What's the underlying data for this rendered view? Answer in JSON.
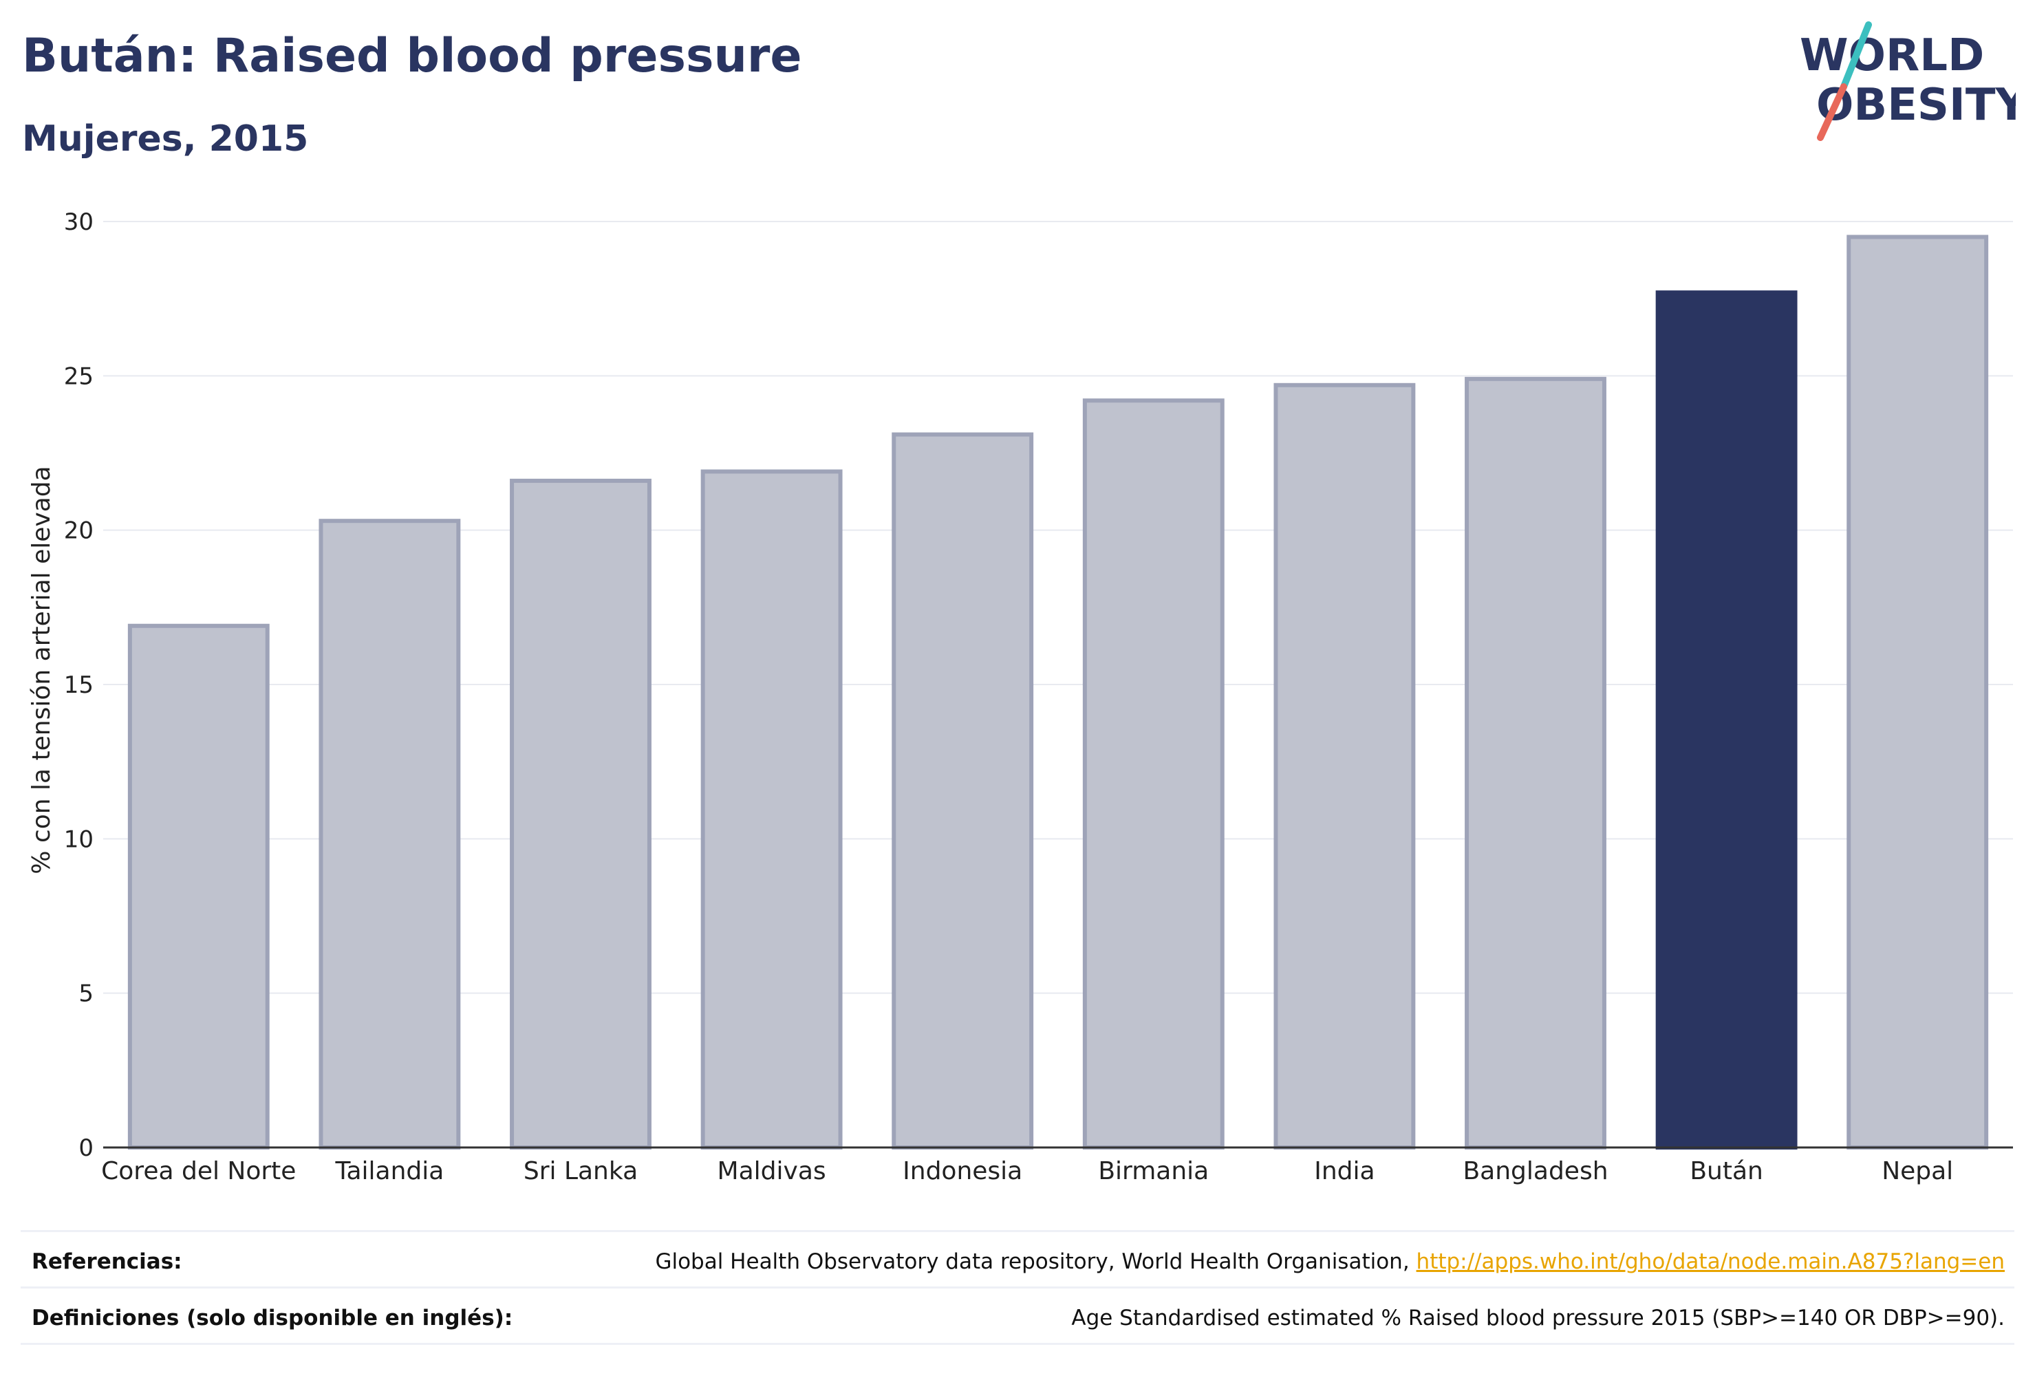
{
  "header": {
    "title": "Bután: Raised blood pressure",
    "subtitle": "Mujeres, 2015"
  },
  "logo": {
    "line1": "WORLD",
    "line2": "OBESITY",
    "accent_teal": "#3cbfbf",
    "accent_coral": "#e8685a"
  },
  "colors": {
    "bar_muted": "#bfc2ce",
    "bar_muted_stroke": "#9ea3b8",
    "bar_highlight": "#2a3561",
    "grid": "#e8eaf0",
    "axis": "#333333"
  },
  "chart_data": {
    "type": "bar",
    "title": "",
    "xlabel": "",
    "ylabel": "% con la tensión arterial elevada",
    "ylim": [
      0,
      30
    ],
    "yticks": [
      0,
      5,
      10,
      15,
      20,
      25,
      30
    ],
    "grid": true,
    "highlight": "Bután",
    "categories": [
      "Corea del Norte",
      "Tailandia",
      "Sri Lanka",
      "Maldivas",
      "Indonesia",
      "Birmania",
      "India",
      "Bangladesh",
      "Bután",
      "Nepal"
    ],
    "values": [
      16.9,
      20.3,
      21.6,
      21.9,
      23.1,
      24.2,
      24.7,
      24.9,
      27.7,
      29.5
    ]
  },
  "footer": {
    "references_label": "Referencias:",
    "references_text": "Global Health Observatory data repository, World Health Organisation, ",
    "references_link": "http://apps.who.int/gho/data/node.main.A875?lang=en",
    "definitions_label": "Definiciones (solo disponible en inglés):",
    "definitions_text": "Age Standardised estimated % Raised blood pressure 2015 (SBP>=140 OR DBP>=90)."
  }
}
